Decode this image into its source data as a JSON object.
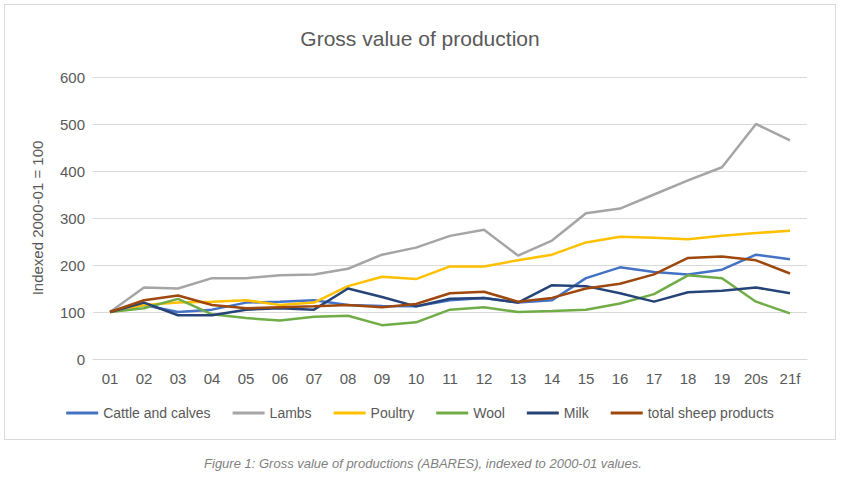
{
  "chart_data": {
    "type": "line",
    "title": "Gross value of production",
    "y_label": "Indexed 2000-01 = 100",
    "caption": "Figure 1: Gross value of productions (ABARES), indexed to 2000-01 values.",
    "categories": [
      "01",
      "02",
      "03",
      "04",
      "05",
      "06",
      "07",
      "08",
      "09",
      "10",
      "11",
      "12",
      "13",
      "14",
      "15",
      "16",
      "17",
      "18",
      "19",
      "20s",
      "21f"
    ],
    "series": [
      {
        "name": "Cattle and calves",
        "color": "#4472c4",
        "values": [
          100,
          115,
          100,
          105,
          120,
          122,
          125,
          115,
          113,
          112,
          125,
          130,
          120,
          125,
          172,
          195,
          185,
          180,
          190,
          222,
          212
        ]
      },
      {
        "name": "Lambs",
        "color": "#a5a5a5",
        "values": [
          100,
          152,
          150,
          172,
          172,
          178,
          180,
          192,
          222,
          237,
          262,
          275,
          220,
          252,
          310,
          320,
          350,
          380,
          408,
          500,
          465
        ]
      },
      {
        "name": "Poultry",
        "color": "#ffc000",
        "values": [
          100,
          115,
          120,
          122,
          125,
          115,
          120,
          155,
          175,
          170,
          197,
          197,
          210,
          222,
          248,
          260,
          258,
          255,
          262,
          268,
          273
        ]
      },
      {
        "name": "Wool",
        "color": "#70ad47",
        "values": [
          100,
          108,
          128,
          95,
          87,
          82,
          90,
          92,
          72,
          78,
          105,
          110,
          100,
          102,
          105,
          118,
          138,
          178,
          172,
          122,
          97
        ]
      },
      {
        "name": "Milk",
        "color": "#264478",
        "values": [
          100,
          120,
          93,
          93,
          105,
          108,
          105,
          150,
          132,
          112,
          128,
          130,
          120,
          157,
          155,
          140,
          122,
          142,
          145,
          152,
          140
        ]
      },
      {
        "name": "total sheep products",
        "color": "#9e480e",
        "values": [
          100,
          125,
          135,
          115,
          108,
          110,
          112,
          115,
          110,
          117,
          140,
          143,
          122,
          130,
          150,
          160,
          180,
          215,
          218,
          210,
          182
        ]
      }
    ],
    "ylim": [
      0,
      600
    ],
    "yticks": [
      0,
      100,
      200,
      300,
      400,
      500,
      600
    ],
    "grid": true,
    "legend": "bottom"
  }
}
